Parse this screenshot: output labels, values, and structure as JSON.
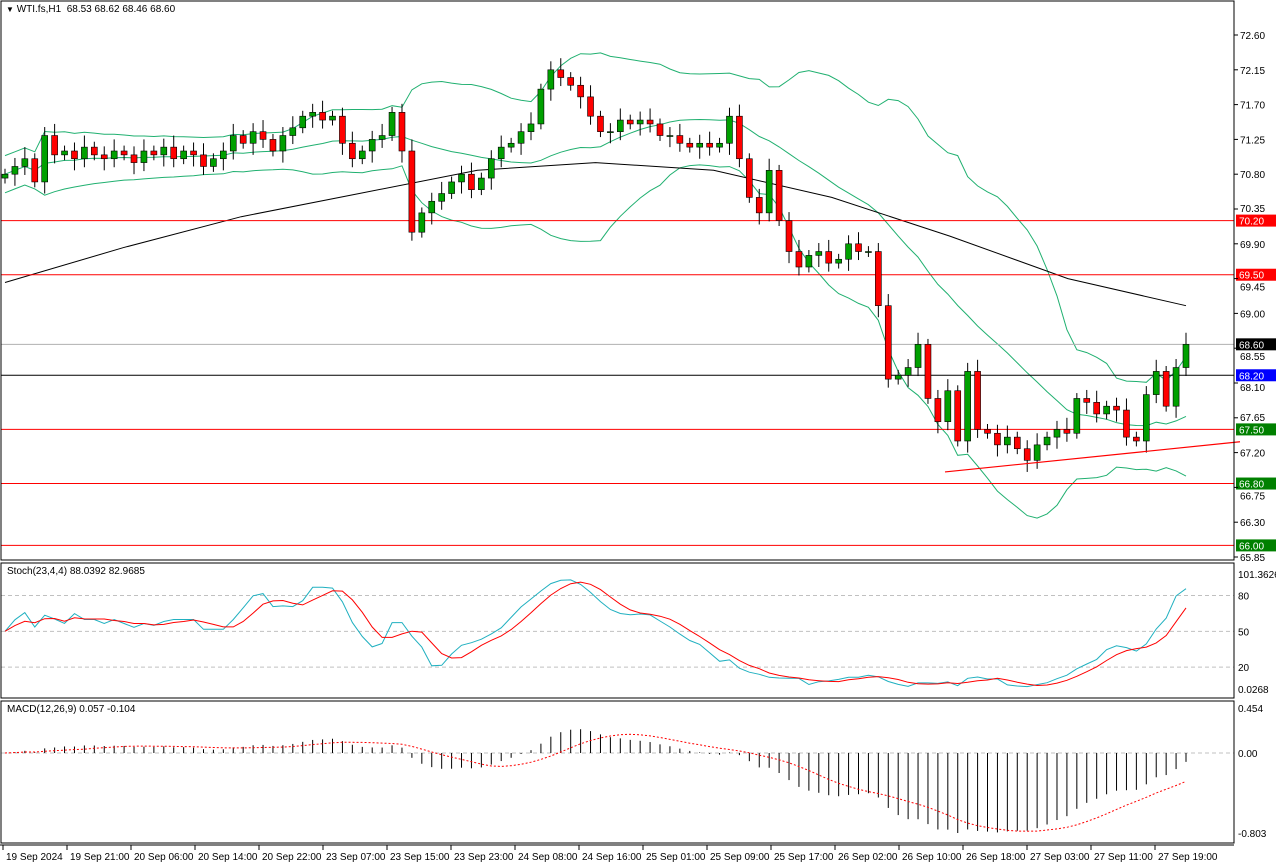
{
  "header": {
    "symbol_label": "WTI.fs,H1",
    "ohlc": "68.53 68.62 68.46 68.60"
  },
  "colors": {
    "bull": "#00a000",
    "bear": "#ff0000",
    "bands": "#20b070",
    "ma": "#000000",
    "stoch_main": "#20b0c0",
    "stoch_signal": "#ff0000",
    "macd_hist": "#000000",
    "macd_signal": "#ff0000",
    "level_red": "#ff0000",
    "level_green_label": "#008000",
    "level_blue_label": "#0000ff",
    "current_price": "#000000"
  },
  "chart_data": [
    {
      "type": "candlestick",
      "title": "WTI.fs,H1",
      "price_axis_ticks": [
        "72.60",
        "72.15",
        "71.70",
        "71.25",
        "70.80",
        "70.35",
        "69.90",
        "69.45",
        "69.00",
        "68.55",
        "68.10",
        "67.65",
        "67.20",
        "66.75",
        "66.30",
        "65.85"
      ],
      "ylim": [
        65.85,
        72.6
      ],
      "time_axis_ticks": [
        "19 Sep 2024",
        "19 Sep 21:00",
        "20 Sep 06:00",
        "20 Sep 14:00",
        "20 Sep 22:00",
        "23 Sep 07:00",
        "23 Sep 15:00",
        "23 Sep 23:00",
        "24 Sep 08:00",
        "24 Sep 16:00",
        "25 Sep 01:00",
        "25 Sep 09:00",
        "25 Sep 17:00",
        "26 Sep 02:00",
        "26 Sep 10:00",
        "26 Sep 18:00",
        "27 Sep 03:00",
        "27 Sep 11:00",
        "27 Sep 19:00"
      ],
      "close": [
        70.8,
        70.9,
        71.0,
        70.7,
        71.3,
        71.05,
        71.1,
        71.0,
        71.15,
        71.05,
        71.0,
        71.1,
        71.05,
        70.95,
        71.1,
        71.05,
        71.15,
        71.0,
        71.1,
        71.05,
        70.9,
        71.0,
        71.1,
        71.3,
        71.2,
        71.35,
        71.25,
        71.1,
        71.3,
        71.4,
        71.55,
        71.6,
        71.5,
        71.55,
        71.2,
        71.0,
        71.1,
        71.25,
        71.3,
        71.6,
        71.1,
        70.05,
        70.3,
        70.45,
        70.55,
        70.7,
        70.8,
        70.6,
        70.75,
        71.0,
        71.15,
        71.2,
        71.35,
        71.45,
        71.9,
        72.15,
        72.05,
        71.95,
        71.8,
        71.55,
        71.35,
        71.35,
        71.5,
        71.45,
        71.5,
        71.45,
        71.3,
        71.3,
        71.2,
        71.15,
        71.2,
        71.15,
        71.2,
        71.55,
        71.0,
        70.5,
        70.3,
        70.85,
        70.2,
        69.8,
        69.6,
        69.75,
        69.8,
        69.65,
        69.7,
        69.9,
        69.8,
        69.8,
        69.1,
        68.15,
        68.2,
        68.3,
        68.6,
        67.9,
        67.6,
        68.0,
        67.35,
        68.25,
        67.5,
        67.45,
        67.3,
        67.4,
        67.25,
        67.1,
        67.3,
        67.4,
        67.5,
        67.45,
        67.9,
        67.85,
        67.7,
        67.8,
        67.75,
        67.4,
        67.35,
        67.95,
        68.25,
        67.8,
        68.3,
        68.6
      ],
      "moving_average_sampled": [
        69.4,
        69.85,
        70.25,
        70.55,
        70.85,
        70.95,
        70.85,
        70.5,
        70.0,
        69.45,
        69.1
      ],
      "levels": [
        {
          "price": 70.2,
          "label": "70.20",
          "line": "red",
          "tag": "red"
        },
        {
          "price": 69.5,
          "label": "69.50",
          "line": "red",
          "tag": "red"
        },
        {
          "price": 68.6,
          "label": "68.60",
          "line": "gray",
          "tag": "black"
        },
        {
          "price": 68.2,
          "label": "68.20",
          "line": "black",
          "tag": "blue"
        },
        {
          "price": 67.5,
          "label": "67.50",
          "line": "red",
          "tag": "green"
        },
        {
          "price": 66.8,
          "label": "66.80",
          "line": "red",
          "tag": "green"
        },
        {
          "price": 66.0,
          "label": "66.00",
          "line": "red",
          "tag": "green"
        }
      ],
      "trendline": {
        "from_price": 66.95,
        "to_price": 67.34,
        "from_time": "26 Sep 10:00"
      }
    },
    {
      "type": "line",
      "title": "Stoch(23,4,4) 88.0392 82.9685",
      "y_ticks": [
        "101.3626",
        "80",
        "50",
        "20",
        "0.0268"
      ],
      "ylim": [
        0,
        101.3626
      ],
      "levels": [
        80,
        50,
        20
      ]
    },
    {
      "type": "bar",
      "title": "MACD(12,26,9) 0.057 -0.104",
      "y_ticks": [
        "0.454",
        "0.00",
        "-0.803"
      ],
      "ylim": [
        -0.803,
        0.454
      ]
    }
  ]
}
